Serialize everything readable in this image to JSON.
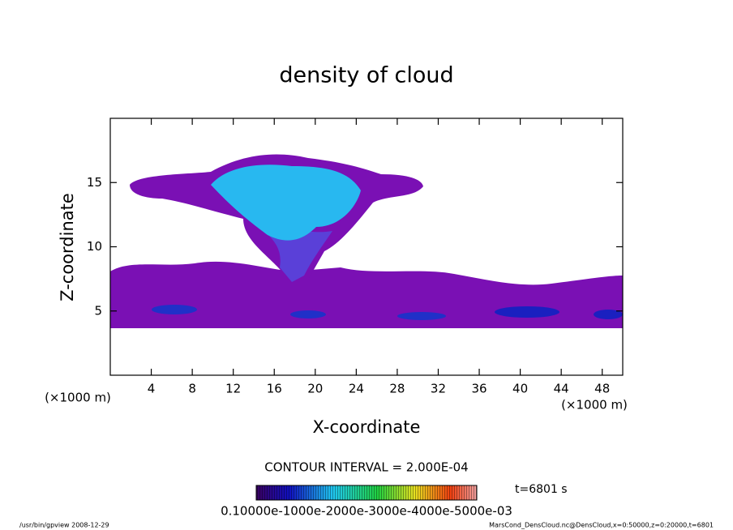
{
  "chart_data": {
    "type": "contour",
    "title": "density of cloud",
    "x_label": "X-coordinate",
    "y_label": "Z-coordinate",
    "x_unit": "(×1000 m)",
    "y_unit": "(×1000 m)",
    "xlim": [
      0,
      50
    ],
    "xticks": [
      4,
      8,
      12,
      16,
      20,
      24,
      28,
      32,
      36,
      40,
      44,
      48
    ],
    "ylim": [
      0,
      20
    ],
    "yticks": [
      5,
      10,
      15
    ],
    "contour_interval": "CONTOUR INTERVAL = 2.000E-04",
    "colorbar_labels": "0.10000e-1000e-2000e-3000e-4000e-5000e-03",
    "time_label": "t=6801 s",
    "footer_left": "/usr/bin/gpview   2008-12-29",
    "footer_right": "MarsCond_DensCloud.nc@DensCloud,x=0:50000,z=0:20000,t=6801"
  }
}
